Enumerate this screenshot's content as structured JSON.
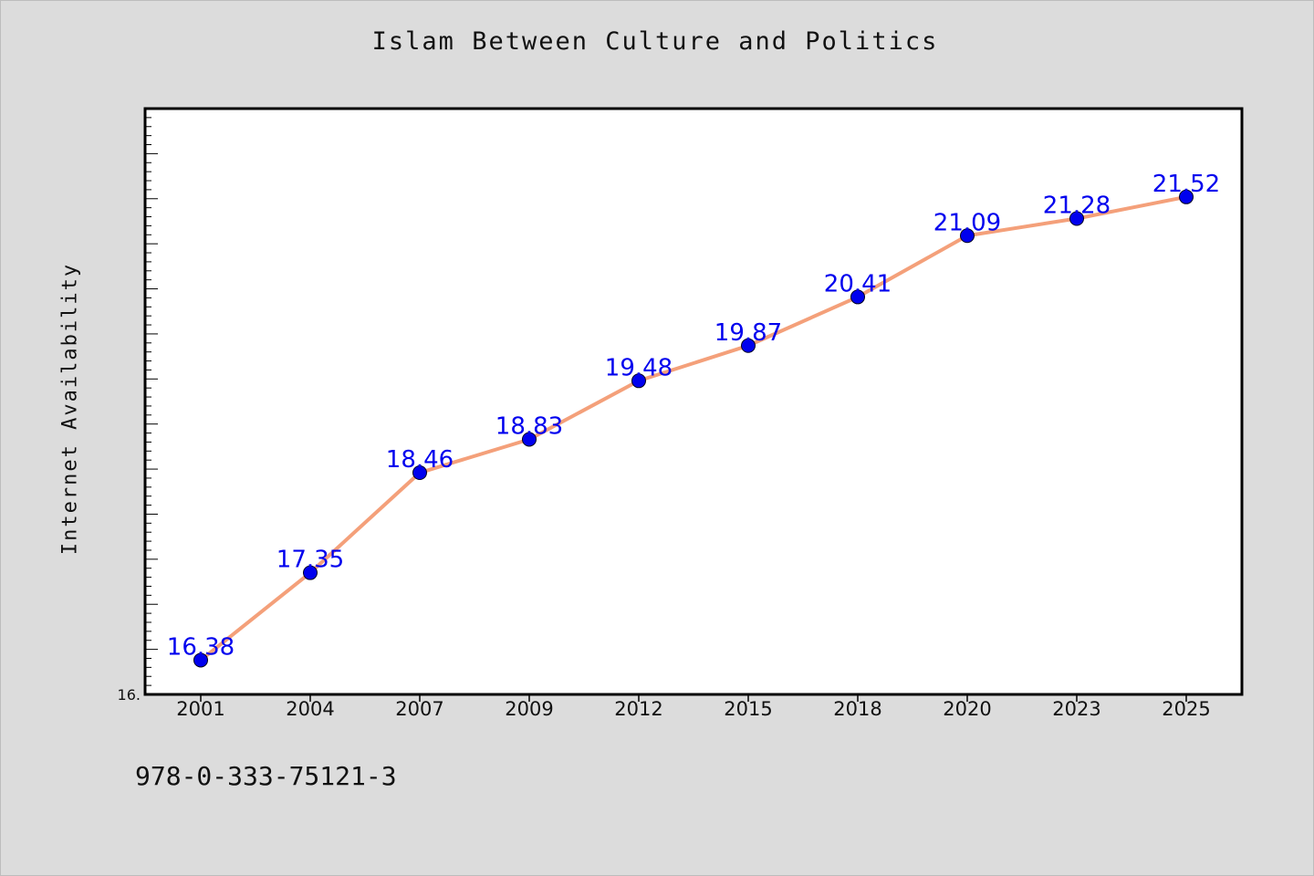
{
  "chart_data": {
    "type": "line",
    "title": "Islam Between Culture and Politics",
    "xlabel": "",
    "ylabel": "Internet Availability",
    "categories": [
      "2001",
      "2004",
      "2007",
      "2009",
      "2012",
      "2015",
      "2018",
      "2020",
      "2023",
      "2025"
    ],
    "series": [
      {
        "values": [
          16.38,
          17.35,
          18.46,
          18.83,
          19.48,
          19.87,
          20.41,
          21.09,
          21.28,
          21.52
        ],
        "line_color": "#f4a07a",
        "marker_color": "#0000ee",
        "label_color": "#0000ee"
      }
    ],
    "ylim": [
      16.0,
      22.5
    ],
    "y_tick_labels": [
      "16."
    ],
    "grid": false,
    "legend": "none"
  },
  "footer": {
    "isbn": "978-0-333-75121-3"
  }
}
